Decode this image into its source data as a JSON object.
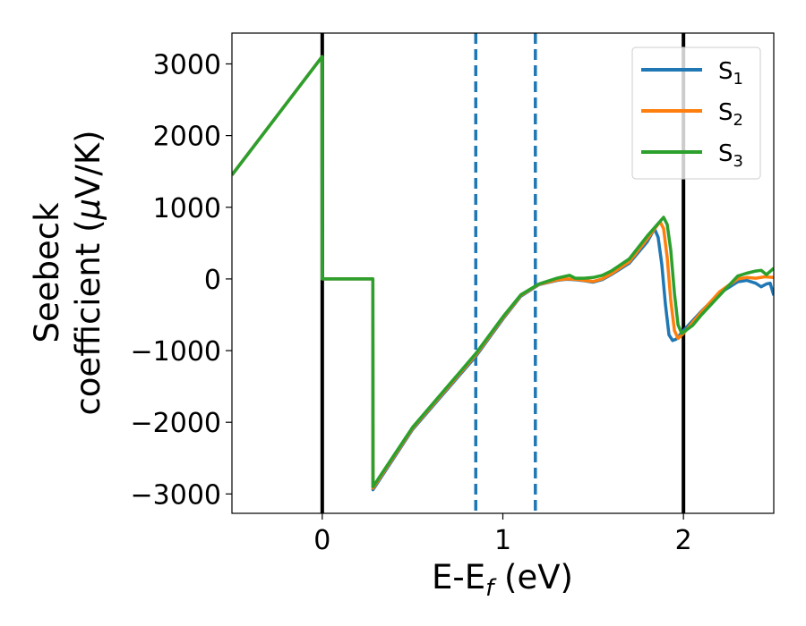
{
  "chart_data": {
    "type": "line",
    "xlabel": {
      "main": "E-E",
      "sub": "f",
      "tail": " (eV)"
    },
    "ylabel": {
      "line1": "Seebeck",
      "line2_pre": "coefficient  (",
      "line2_mu": "μ",
      "line2_post": "V/K)"
    },
    "xlim": [
      -0.5,
      2.5
    ],
    "ylim": [
      -3270,
      3430
    ],
    "xticks": [
      {
        "value": 0,
        "label": "0"
      },
      {
        "value": 1,
        "label": "1"
      },
      {
        "value": 2,
        "label": "2"
      }
    ],
    "yticks": [
      {
        "value": 3000,
        "label": "3000"
      },
      {
        "value": 2000,
        "label": "2000"
      },
      {
        "value": 1000,
        "label": "1000"
      },
      {
        "value": 0,
        "label": "0"
      },
      {
        "value": -1000,
        "label": "−1000"
      },
      {
        "value": -2000,
        "label": "−2000"
      },
      {
        "value": -3000,
        "label": "−3000"
      }
    ],
    "grid": false,
    "legend_position": "top-right",
    "vertical_lines": [
      {
        "x": 0,
        "style": "solid",
        "color": "#000000"
      },
      {
        "x": 2.0,
        "style": "solid",
        "color": "#000000"
      },
      {
        "x": 0.85,
        "style": "dashed",
        "color": "#1f77b4"
      },
      {
        "x": 1.18,
        "style": "dashed",
        "color": "#1f77b4"
      }
    ],
    "series": [
      {
        "name": "S",
        "subscript": "1",
        "color": "#1f77b4",
        "points": [
          [
            -0.5,
            1450
          ],
          [
            -0.001,
            3100
          ],
          [
            0.0,
            0
          ],
          [
            0.28,
            0
          ],
          [
            0.281,
            -2940
          ],
          [
            0.5,
            -2100
          ],
          [
            0.85,
            -1080
          ],
          [
            1.0,
            -560
          ],
          [
            1.1,
            -240
          ],
          [
            1.2,
            -80
          ],
          [
            1.3,
            -20
          ],
          [
            1.35,
            -5
          ],
          [
            1.4,
            -10
          ],
          [
            1.45,
            -25
          ],
          [
            1.5,
            -45
          ],
          [
            1.55,
            -10
          ],
          [
            1.6,
            60
          ],
          [
            1.7,
            220
          ],
          [
            1.8,
            520
          ],
          [
            1.84,
            700
          ],
          [
            1.86,
            580
          ],
          [
            1.88,
            200
          ],
          [
            1.9,
            -350
          ],
          [
            1.92,
            -780
          ],
          [
            1.94,
            -860
          ],
          [
            1.96,
            -840
          ],
          [
            2.0,
            -720
          ],
          [
            2.1,
            -450
          ],
          [
            2.2,
            -200
          ],
          [
            2.3,
            -40
          ],
          [
            2.35,
            -20
          ],
          [
            2.4,
            -60
          ],
          [
            2.43,
            -110
          ],
          [
            2.46,
            -70
          ],
          [
            2.48,
            -60
          ],
          [
            2.5,
            -230
          ]
        ]
      },
      {
        "name": "S",
        "subscript": "2",
        "color": "#ff7f0e",
        "points": [
          [
            -0.5,
            1450
          ],
          [
            -0.001,
            3100
          ],
          [
            0.0,
            0
          ],
          [
            0.28,
            0
          ],
          [
            0.281,
            -2920
          ],
          [
            0.5,
            -2085
          ],
          [
            0.85,
            -1060
          ],
          [
            1.0,
            -545
          ],
          [
            1.1,
            -230
          ],
          [
            1.2,
            -75
          ],
          [
            1.3,
            -15
          ],
          [
            1.35,
            0
          ],
          [
            1.4,
            -5
          ],
          [
            1.45,
            -20
          ],
          [
            1.5,
            -35
          ],
          [
            1.55,
            0
          ],
          [
            1.6,
            70
          ],
          [
            1.7,
            240
          ],
          [
            1.8,
            560
          ],
          [
            1.87,
            800
          ],
          [
            1.89,
            700
          ],
          [
            1.91,
            300
          ],
          [
            1.93,
            -300
          ],
          [
            1.95,
            -720
          ],
          [
            1.97,
            -830
          ],
          [
            2.0,
            -760
          ],
          [
            2.1,
            -460
          ],
          [
            2.2,
            -180
          ],
          [
            2.3,
            0
          ],
          [
            2.35,
            20
          ],
          [
            2.4,
            10
          ],
          [
            2.45,
            30
          ],
          [
            2.5,
            20
          ]
        ]
      },
      {
        "name": "S",
        "subscript": "3",
        "color": "#2ca02c",
        "points": [
          [
            -0.5,
            1450
          ],
          [
            -0.001,
            3100
          ],
          [
            0.0,
            0
          ],
          [
            0.28,
            0
          ],
          [
            0.281,
            -2900
          ],
          [
            0.5,
            -2070
          ],
          [
            0.85,
            -1040
          ],
          [
            1.0,
            -530
          ],
          [
            1.1,
            -220
          ],
          [
            1.2,
            -70
          ],
          [
            1.3,
            10
          ],
          [
            1.35,
            40
          ],
          [
            1.37,
            50
          ],
          [
            1.4,
            10
          ],
          [
            1.45,
            10
          ],
          [
            1.5,
            20
          ],
          [
            1.55,
            50
          ],
          [
            1.6,
            110
          ],
          [
            1.7,
            280
          ],
          [
            1.8,
            600
          ],
          [
            1.89,
            860
          ],
          [
            1.91,
            760
          ],
          [
            1.93,
            400
          ],
          [
            1.95,
            -200
          ],
          [
            1.97,
            -640
          ],
          [
            1.99,
            -760
          ],
          [
            2.05,
            -650
          ],
          [
            2.1,
            -500
          ],
          [
            2.2,
            -230
          ],
          [
            2.3,
            40
          ],
          [
            2.35,
            80
          ],
          [
            2.4,
            110
          ],
          [
            2.43,
            120
          ],
          [
            2.46,
            60
          ],
          [
            2.5,
            150
          ]
        ]
      }
    ]
  }
}
